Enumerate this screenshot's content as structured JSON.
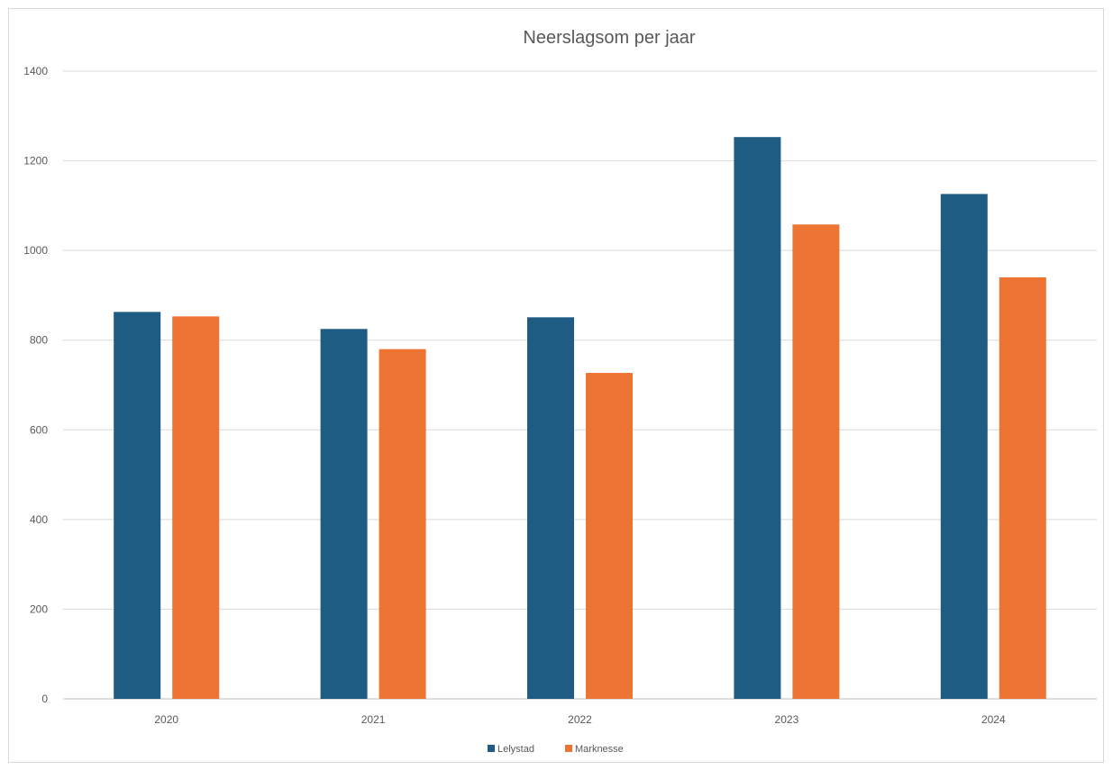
{
  "chart_data": {
    "type": "bar",
    "title": "Neerslagsom per jaar",
    "xlabel": "",
    "ylabel": "",
    "categories": [
      "2020",
      "2021",
      "2022",
      "2023",
      "2024"
    ],
    "series": [
      {
        "name": "Lelystad",
        "color": "#1f5c84",
        "values": [
          863,
          825,
          851,
          1253,
          1126
        ]
      },
      {
        "name": "Marknesse",
        "color": "#ed7433",
        "values": [
          853,
          780,
          727,
          1058,
          940
        ]
      }
    ],
    "ylim": [
      0,
      1400
    ],
    "yticks": [
      "0",
      "200",
      "400",
      "600",
      "800",
      "1000",
      "1200",
      "1400"
    ],
    "grid": true,
    "legend_position": "bottom"
  }
}
